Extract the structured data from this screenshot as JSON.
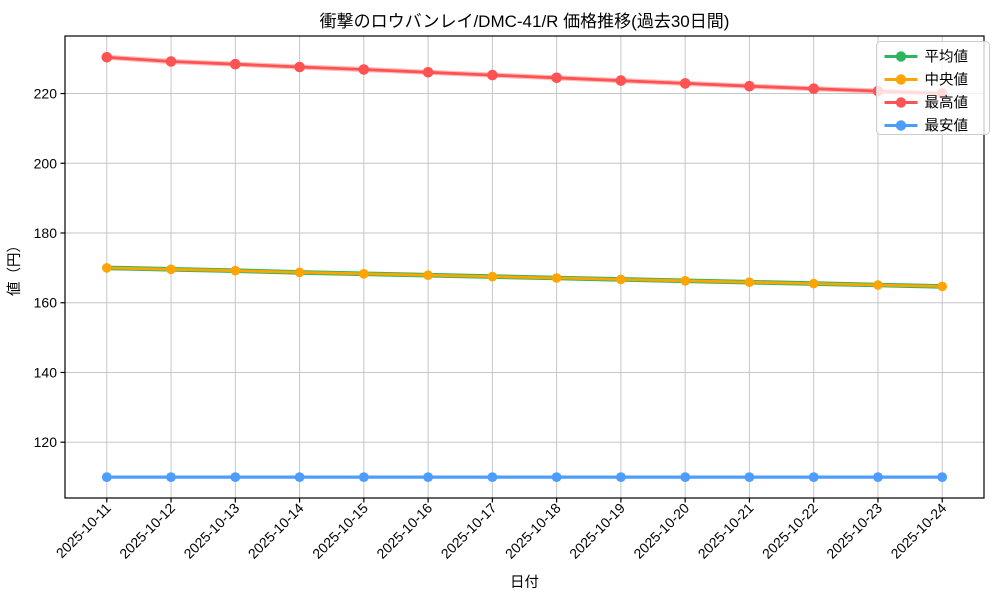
{
  "figure": {
    "background": "#ffffff",
    "spine_color": "#000000",
    "grid_color": "#c6c6c6",
    "legend": {
      "border_color": "#cccccc",
      "background": "rgba(255,255,255,0.8)",
      "position": "upper right"
    }
  },
  "chart_data": {
    "type": "line",
    "title": "衝撃のロウバンレイ/DMC-41/R 価格推移(過去30日間)",
    "xlabel": "日付",
    "ylabel": "値（円）",
    "categories": [
      "2025-10-11",
      "2025-10-12",
      "2025-10-13",
      "2025-10-14",
      "2025-10-15",
      "2025-10-16",
      "2025-10-17",
      "2025-10-18",
      "2025-10-19",
      "2025-10-20",
      "2025-10-21",
      "2025-10-22",
      "2025-10-23",
      "2025-10-24"
    ],
    "series": [
      {
        "name": "平均値",
        "color": "#2eb55e",
        "values": [
          170.0,
          169.6,
          169.2,
          168.7,
          168.3,
          167.9,
          167.5,
          167.1,
          166.7,
          166.3,
          165.9,
          165.5,
          165.1,
          164.7
        ],
        "line_width": 4.6,
        "marker_size": 4.6,
        "halo_width": 0,
        "halo_opacity": 0,
        "note": "hidden beneath median line"
      },
      {
        "name": "中央値",
        "color": "#ffa502",
        "values": [
          170.0,
          169.6,
          169.2,
          168.7,
          168.3,
          167.9,
          167.5,
          167.1,
          166.7,
          166.3,
          165.9,
          165.5,
          165.1,
          164.7
        ],
        "line_width": 2.8,
        "marker_size": 4.8,
        "halo_width": 0,
        "halo_opacity": 0
      },
      {
        "name": "最高値",
        "color": "#ff5252",
        "values": [
          230.4,
          229.2,
          228.4,
          227.6,
          226.9,
          226.1,
          225.3,
          224.5,
          223.7,
          222.9,
          222.1,
          221.4,
          220.7,
          220.0
        ],
        "line_width": 2.8,
        "marker_size": 5.3,
        "halo_width": 5.2,
        "halo_opacity": 0.38
      },
      {
        "name": "最安値",
        "color": "#4d9dff",
        "values": [
          110,
          110,
          110,
          110,
          110,
          110,
          110,
          110,
          110,
          110,
          110,
          110,
          110,
          110
        ],
        "line_width": 3.2,
        "marker_size": 4.9,
        "halo_width": 0,
        "halo_opacity": 0
      }
    ],
    "yticks": [
      120,
      140,
      160,
      180,
      200,
      220
    ],
    "ylim": [
      104,
      236.5
    ],
    "xlim": [
      -0.65,
      13.65
    ],
    "grid": true,
    "legend_position": "upper right",
    "x_tick_rotation": 45
  }
}
